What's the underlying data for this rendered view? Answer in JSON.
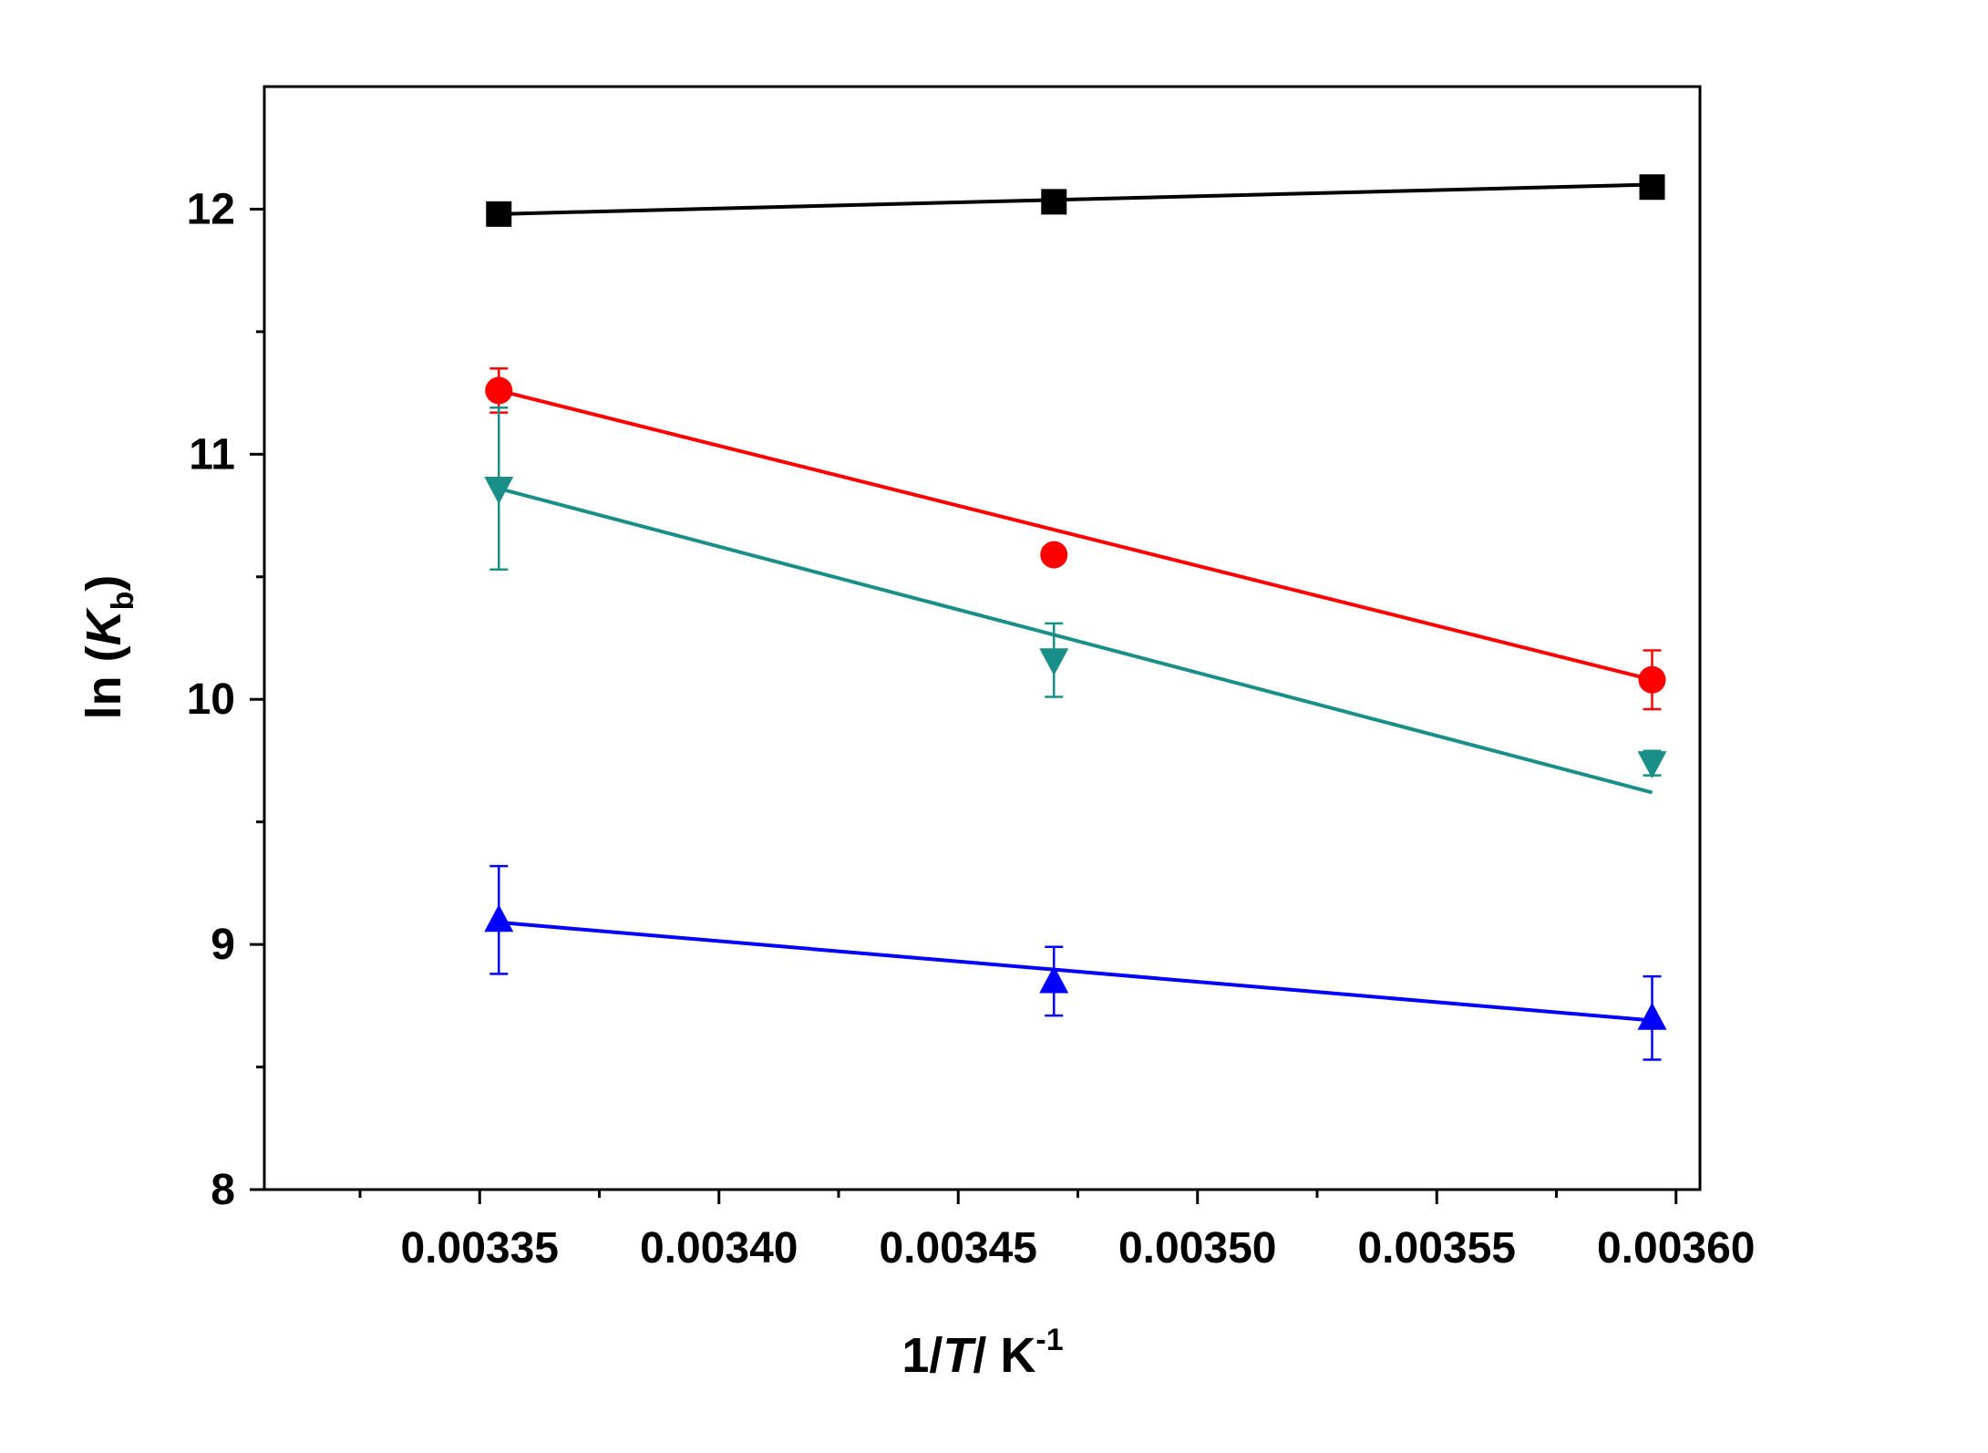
{
  "chart_data": {
    "type": "scatter",
    "title": "",
    "xlabel": {
      "prefix": "1/",
      "var": "T",
      "mid": "/ K",
      "sup": "-1"
    },
    "ylabel": {
      "prefix": "ln (",
      "var": "K",
      "sub": "b",
      "suffix": ")"
    },
    "xlim": [
      0.003305,
      0.003605
    ],
    "ylim": [
      8,
      12.5
    ],
    "x_ticks": [
      "0.00335",
      "0.00340",
      "0.00345",
      "0.00350",
      "0.00355",
      "0.00360"
    ],
    "y_ticks": [
      "8",
      "9",
      "10",
      "11",
      "12"
    ],
    "grid": false,
    "legend": "none",
    "series": [
      {
        "marker": "square",
        "color": "#000000",
        "x": [
          0.003354,
          0.00347,
          0.003595
        ],
        "y": [
          11.98,
          12.03,
          12.09
        ],
        "err": [
          0.04,
          0.04,
          0.04
        ],
        "fit": {
          "x": [
            0.003354,
            0.003595
          ],
          "y": [
            11.98,
            12.1
          ]
        }
      },
      {
        "marker": "circle",
        "color": "#ff0000",
        "x": [
          0.003354,
          0.00347,
          0.003595
        ],
        "y": [
          11.26,
          10.59,
          10.08
        ],
        "err": [
          0.09,
          0.02,
          0.12
        ],
        "fit": {
          "x": [
            0.003354,
            0.003595
          ],
          "y": [
            11.26,
            10.08
          ]
        }
      },
      {
        "marker": "triangle-down",
        "color": "#1a8f8a",
        "x": [
          0.003354,
          0.00347,
          0.003595
        ],
        "y": [
          10.86,
          10.16,
          9.74
        ],
        "err": [
          0.33,
          0.15,
          0.05
        ],
        "fit": {
          "x": [
            0.003354,
            0.003595
          ],
          "y": [
            10.86,
            9.62
          ]
        }
      },
      {
        "marker": "triangle-up",
        "color": "#0000ff",
        "x": [
          0.003354,
          0.00347,
          0.003595
        ],
        "y": [
          9.1,
          8.85,
          8.7
        ],
        "err": [
          0.22,
          0.14,
          0.17
        ],
        "fit": {
          "x": [
            0.003354,
            0.003595
          ],
          "y": [
            9.09,
            8.69
          ]
        }
      }
    ]
  }
}
